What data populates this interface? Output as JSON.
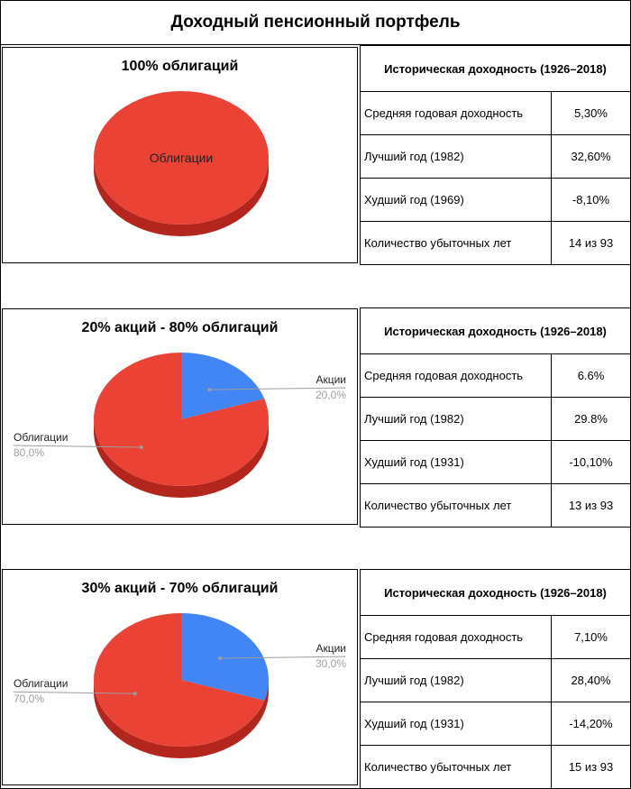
{
  "title": "Доходный пенсионный портфель",
  "colors": {
    "bonds": "#ea4335",
    "bonds_side": "#b3261e",
    "stocks": "#4285f4",
    "stocks_side": "#2f63b8",
    "leader": "#9e9e9e",
    "pct_text": "#9e9e9e"
  },
  "portfolios": [
    {
      "chart_title": "100% облигаций",
      "stats": {
        "header": "Историческая доходность (1926–2018)",
        "rows": [
          {
            "label": "Средняя годовая доходность",
            "value": "5,30%"
          },
          {
            "label": "Лучший год (1982)",
            "value": "32,60%"
          },
          {
            "label": "Худший год (1969)",
            "value": "-8,10%"
          },
          {
            "label": "Количество убыточных лет",
            "value": "14 из 93"
          }
        ]
      }
    },
    {
      "chart_title": "20% акций - 80% облигаций",
      "stats": {
        "header": "Историческая доходность (1926–2018)",
        "rows": [
          {
            "label": "Средняя годовая доходность",
            "value": "6.6%"
          },
          {
            "label": "Лучший год (1982)",
            "value": "29.8%"
          },
          {
            "label": "Худший год (1931)",
            "value": "-10,10%"
          },
          {
            "label": "Количество убыточных лет",
            "value": "13 из 93"
          }
        ]
      }
    },
    {
      "chart_title": "30% акций - 70% облигаций",
      "stats": {
        "header": "Историческая доходность (1926–2018)",
        "rows": [
          {
            "label": "Средняя годовая доходность",
            "value": "7,10%"
          },
          {
            "label": "Лучший год (1982)",
            "value": "28,40%"
          },
          {
            "label": "Худший год (1931)",
            "value": "-14,20%"
          },
          {
            "label": "Количество убыточных лет",
            "value": "15 из 93"
          }
        ]
      }
    }
  ],
  "chart_data": [
    {
      "type": "pie",
      "title": "100% облигаций",
      "labels": [
        "Облигации"
      ],
      "values": [
        100
      ],
      "display": [
        "Облигации"
      ],
      "label_style": "inside"
    },
    {
      "type": "pie",
      "title": "20% акций - 80% облигаций",
      "labels": [
        "Акции",
        "Облигации"
      ],
      "values": [
        20,
        80
      ],
      "display": [
        "20,0%",
        "80,0%"
      ],
      "label_style": "outside"
    },
    {
      "type": "pie",
      "title": "30% акций - 70% облигаций",
      "labels": [
        "Акции",
        "Облигации"
      ],
      "values": [
        30,
        70
      ],
      "display": [
        "30,0%",
        "70,0%"
      ],
      "label_style": "outside"
    }
  ]
}
